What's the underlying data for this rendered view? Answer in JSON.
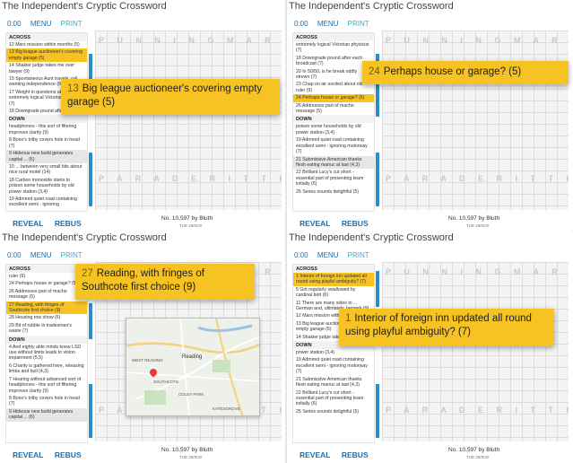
{
  "app_title": "The Independent's Cryptic Crossword",
  "toolbar": {
    "time": "0:00",
    "menu": "MENU",
    "print": "PRINT"
  },
  "actions": {
    "reveal": "REVEAL",
    "rebus": "REBUS"
  },
  "byline": "No. 10,597 by Bluth",
  "date": "TUE 29/9/20",
  "accent_color": "#f7c323",
  "link_color": "#1a6fb0",
  "grid_letters_top": "P U N N I N G M A R T I N",
  "grid_letters_bottom": "P A R A D E R I T T E R",
  "panels": [
    {
      "banner": {
        "number": "13",
        "text": "Big league auctioneer's covering empty garage (5)"
      },
      "clues": [
        {
          "t": "ACROSS",
          "h": true
        },
        {
          "t": "12 Mars mission within months (5)"
        },
        {
          "t": "13 Big league auctioneer's covering empty garage (5)",
          "sel": true
        },
        {
          "t": "14 Shakier judge takes me over lawyer (9)"
        },
        {
          "t": "15 Spontaneous Aunt travels, rail wanting independence (8)"
        },
        {
          "t": "17 Weight in questions about extremely logical Victorian physicist (7)"
        },
        {
          "t": "18 Downgrade pound after each"
        },
        {
          "t": "DOWN",
          "h": true
        },
        {
          "t": "headphones - this sort of filtering improves clarity (9)"
        },
        {
          "t": "8 Bono's trilby covers hole in head (7)"
        },
        {
          "t": "9 Hideous new build generates capital ... (6)",
          "grey": true
        },
        {
          "t": "10 ... between very small bits about nice rural motel (14)"
        },
        {
          "t": "18 Carbon monoxide starts to poison some households by old power station (3,4)"
        },
        {
          "t": "19 Admired quiet road containing excellent semi - ignoring"
        }
      ]
    },
    {
      "banner": {
        "number": "24",
        "text": "Perhaps house or garage? (5)"
      },
      "clues": [
        {
          "t": "ACROSS",
          "h": true
        },
        {
          "t": "extremely logical Victorian physicist (7)"
        },
        {
          "t": "18 Downgrade pound after each broadcast (7)"
        },
        {
          "t": "20 In 50/50, is he break oddly strewn (7)"
        },
        {
          "t": "23 Chap on air excited about old ruler (9)"
        },
        {
          "t": "24 Perhaps house or garage? (5)",
          "sel": true
        },
        {
          "t": "26 Addresses part of macho message (5)"
        },
        {
          "t": "DOWN",
          "h": true
        },
        {
          "t": "poison some households by old power station (3,4)"
        },
        {
          "t": "19 Admired quiet road containing excellent semi - ignoring motorway (7)"
        },
        {
          "t": "21 Submissive American thanks flesh eating manuc at last (4,3)",
          "grey": true
        },
        {
          "t": "22 Brilliant Lucy's cut short - essential part of presenting team initially (6)"
        },
        {
          "t": "25 Series sounds delightful (5)"
        }
      ]
    },
    {
      "banner": {
        "number": "27",
        "text": "Reading, with fringes of Southcote first choice (9)"
      },
      "clues": [
        {
          "t": "ACROSS",
          "h": true
        },
        {
          "t": "ruler (9)"
        },
        {
          "t": "24 Perhaps house or garage? (5)"
        },
        {
          "t": "26 Addresses part of macho message (5)"
        },
        {
          "t": "27 Reading, with fringes of Southcote first choice (9)",
          "sel": true
        },
        {
          "t": "28 Housing row show (6)"
        },
        {
          "t": "29 Bit of rubble in tradesman's waste (7)"
        },
        {
          "t": "DOWN",
          "h": true
        },
        {
          "t": "4 And eighty able minds knew LSD use without limits leads to vision impairment (5,5)"
        },
        {
          "t": "6 Charity is gathered here, releasing limbs and bull (4,3)"
        },
        {
          "t": "7 Hearing without advanced sort of headphones - this sort of filtering improves clarity (9)"
        },
        {
          "t": "8 Bono's trilby covers hole in head (7)"
        },
        {
          "t": "9 Hideous new build generates capital ... (6)",
          "grey": true
        }
      ],
      "map_labels": [
        "Reading",
        "WEST READING",
        "SOUTHCOTE",
        "COLEY PARK",
        "KATESGROVE"
      ]
    },
    {
      "banner": {
        "number": "1",
        "text": "Interior of foreign inn updated all round using playful ambiguity? (7)"
      },
      "clues": [
        {
          "t": "ACROSS",
          "h": true
        },
        {
          "t": "1 Interior of foreign inn updated all round using playful ambiguity? (7)",
          "sel": true
        },
        {
          "t": "5 Grit regularly swallowed by cardinal bird (6)"
        },
        {
          "t": "11 There are many sides to ... German and, ultimately, berserk (9)"
        },
        {
          "t": "12 Mars mission within months (5)"
        },
        {
          "t": "13 Big league auctioneer's covering empty garage (5)"
        },
        {
          "t": "14 Shakier judge takes me over"
        },
        {
          "t": "DOWN",
          "h": true
        },
        {
          "t": "power station (3,4)"
        },
        {
          "t": "19 Admired quiet road containing excellent semi - ignoring motorway (7)"
        },
        {
          "t": "21 Submissive American thanks flesh eating manuc at last (4,3)"
        },
        {
          "t": "22 Brilliant Lucy's cut short - essential part of presenting team initially (6)"
        },
        {
          "t": "25 Series sounds delightful (5)"
        }
      ]
    }
  ]
}
